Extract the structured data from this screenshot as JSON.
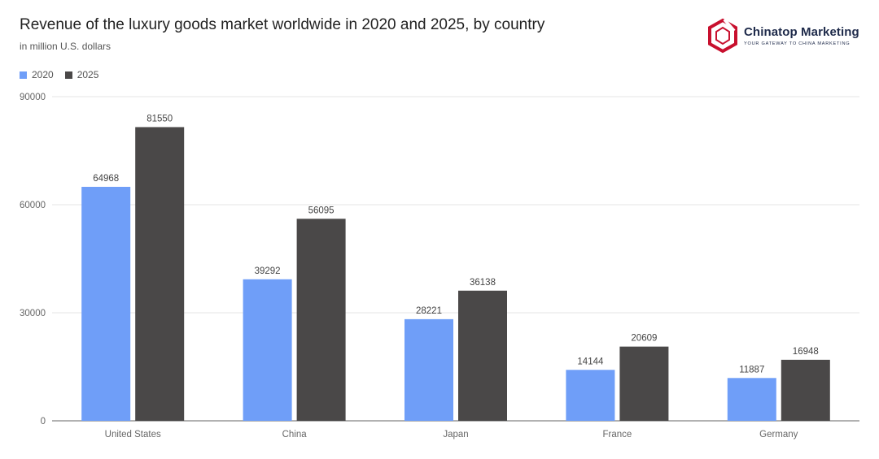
{
  "title": "Revenue of the luxury goods market worldwide in 2020 and 2025, by country",
  "subtitle": "in million U.S. dollars",
  "logo": {
    "name": "Chinatop Marketing",
    "tagline": "YOUR GATEWAY TO CHINA MARKETING"
  },
  "colors": {
    "series_2020": "#6f9ef8",
    "series_2025": "#4a4848",
    "grid": "#e4e4e4",
    "axis": "#666666",
    "brand_red": "#c8102e"
  },
  "chart_data": {
    "type": "bar",
    "title": "Revenue of the luxury goods market worldwide in 2020 and 2025, by country",
    "subtitle": "in million U.S. dollars",
    "categories": [
      "United States",
      "China",
      "Japan",
      "France",
      "Germany"
    ],
    "series": [
      {
        "name": "2020",
        "values": [
          64968,
          39292,
          28221,
          14144,
          11887
        ]
      },
      {
        "name": "2025",
        "values": [
          81550,
          56095,
          36138,
          20609,
          16948
        ]
      }
    ],
    "ylim": [
      0,
      90000
    ],
    "yticks": [
      "0",
      "30000",
      "60000",
      "90000"
    ],
    "grid": true,
    "legend_position": "top-left",
    "data_labels": true
  }
}
